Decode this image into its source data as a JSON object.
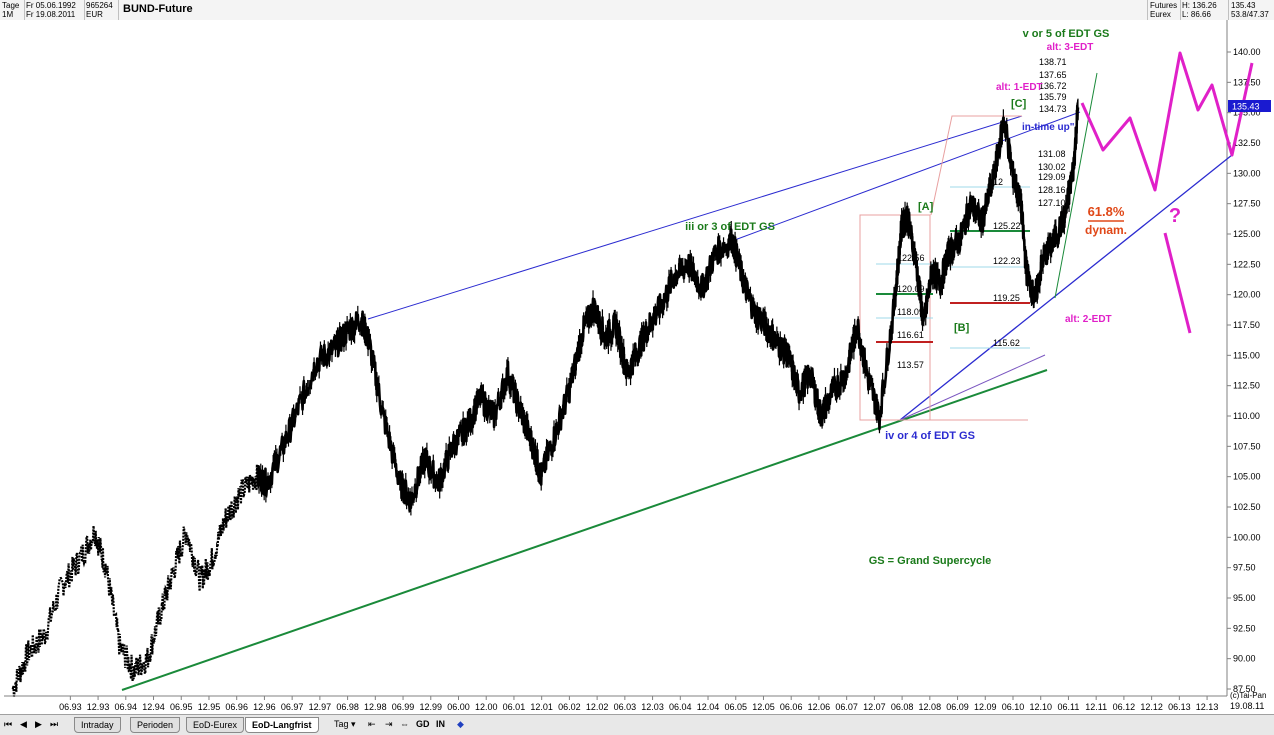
{
  "header": {
    "cells": [
      {
        "l1": "Tage",
        "l2": "1M"
      },
      {
        "l1": "Fr 05.06.1992",
        "l2": "Fr 19.08.2011"
      },
      {
        "l1": "965264",
        "l2": "EUR"
      }
    ],
    "title": "BUND-Future",
    "right": [
      {
        "l1": "Futures",
        "l2": "Eurex"
      },
      {
        "l1": "H: 136.26",
        "l2": "L: 86.66"
      },
      {
        "l1": "135.43",
        "l2": "53.8/47.37"
      }
    ]
  },
  "tabs": {
    "nav_icons": [
      "first-icon",
      "prev-icon",
      "next-icon",
      "last-icon"
    ],
    "items": [
      {
        "label": "Intraday",
        "active": false
      },
      {
        "label": "Perioden",
        "active": false
      },
      {
        "label": "EoD-Eurex",
        "active": false
      },
      {
        "label": "EoD-Langfrist",
        "active": true
      }
    ],
    "period_select": "Tag",
    "gd_label": "GD",
    "in_label": "IN"
  },
  "copyright": "(c)Tai-Pan",
  "last_date": "19.08.11",
  "colors": {
    "price": "#000000",
    "green_line": "#1a8a3a",
    "blue_line": "#2b2bd0",
    "magenta": "#e020c8",
    "orange": "#e04818",
    "annotation_green": "#1a7a1a",
    "last_price_bg": "#1a1ad0"
  },
  "chart_data": {
    "type": "line",
    "title": "BUND-Future",
    "y_axis": {
      "range": [
        86.66,
        141.5
      ],
      "ticks": [
        "87.50",
        "90.00",
        "92.50",
        "95.00",
        "97.50",
        "100.00",
        "102.50",
        "105.00",
        "107.50",
        "110.00",
        "112.50",
        "115.00",
        "117.50",
        "120.00",
        "122.50",
        "125.00",
        "127.50",
        "130.00",
        "132.50",
        "135.00",
        "137.50",
        "140.00"
      ],
      "side": "right"
    },
    "x_axis": {
      "range": [
        "1992-06",
        "2014-01"
      ],
      "ticks": [
        "06.93",
        "12.93",
        "06.94",
        "12.94",
        "06.95",
        "12.95",
        "06.96",
        "12.96",
        "06.97",
        "12.97",
        "06.98",
        "12.98",
        "06.99",
        "12.99",
        "06.00",
        "12.00",
        "06.01",
        "12.01",
        "06.02",
        "12.02",
        "06.03",
        "12.03",
        "06.04",
        "12.04",
        "06.05",
        "12.05",
        "06.06",
        "12.06",
        "06.07",
        "12.07",
        "06.08",
        "12.08",
        "06.09",
        "12.09",
        "06.10",
        "12.10",
        "06.11",
        "12.11",
        "06.12",
        "12.12",
        "06.13",
        "12.13"
      ]
    },
    "last_price": "135.43",
    "series": [
      {
        "x": [
          1992.42,
          1992.7,
          1993.0,
          1993.3,
          1993.6,
          1993.9,
          1994.1,
          1994.35,
          1994.6,
          1994.85,
          1995.1,
          1995.3,
          1995.55,
          1995.8,
          1996.0,
          1996.25,
          1996.5,
          1996.8,
          1997.0,
          1997.3,
          1997.6,
          1997.9,
          1998.2,
          1998.45,
          1998.7,
          1998.85,
          1999.1,
          1999.4,
          1999.6,
          1999.85,
          2000.1,
          2000.35,
          2000.6,
          2000.85,
          2001.1,
          2001.35,
          2001.6,
          2001.8,
          2001.95,
          2002.2,
          2002.45,
          2002.7,
          2002.9,
          2003.1,
          2003.3,
          2003.5,
          2003.7,
          2003.9,
          2004.1,
          2004.35,
          2004.6,
          2004.85,
          2005.1,
          2005.4,
          2005.6,
          2005.8,
          2006.0,
          2006.2,
          2006.4,
          2006.6,
          2006.8,
          2007.0,
          2007.2,
          2007.45,
          2007.65,
          2007.85,
          2008.05,
          2008.3,
          2008.45,
          2008.55,
          2008.7,
          2008.85,
          2009.0,
          2009.15,
          2009.3,
          2009.5,
          2009.7,
          2009.9,
          2010.1,
          2010.3,
          2010.45,
          2010.6,
          2010.7,
          2010.85,
          2011.0,
          2011.2,
          2011.4,
          2011.55,
          2011.63
        ],
        "y": [
          87.5,
          90.5,
          92.0,
          96.0,
          98.0,
          100.5,
          97.5,
          91.0,
          89.0,
          90.0,
          94.0,
          97.0,
          100.5,
          96.5,
          98.0,
          101.5,
          103.5,
          105.0,
          104.5,
          107.5,
          111.0,
          114.5,
          115.5,
          117.0,
          118.0,
          116.0,
          110.0,
          104.5,
          103.0,
          106.5,
          104.5,
          107.5,
          109.0,
          111.5,
          110.0,
          113.5,
          110.0,
          107.5,
          105.0,
          108.5,
          112.0,
          117.0,
          119.0,
          116.5,
          117.5,
          113.5,
          115.5,
          117.5,
          119.0,
          121.5,
          122.5,
          120.5,
          123.5,
          124.5,
          121.0,
          118.5,
          117.5,
          116.0,
          115.0,
          112.0,
          113.5,
          110.0,
          112.0,
          113.5,
          117.5,
          113.0,
          110.0,
          118.5,
          125.5,
          126.5,
          123.0,
          117.5,
          122.0,
          121.0,
          123.5,
          124.5,
          127.5,
          126.0,
          129.5,
          134.5,
          130.0,
          127.5,
          122.0,
          119.5,
          123.0,
          124.5,
          126.5,
          130.5,
          135.43
        ]
      }
    ]
  },
  "level_labels": [
    "131.08",
    "130.02",
    "129.09",
    "128.16",
    "127.10",
    "125.22",
    "122.23",
    "119.25",
    "115.62",
    "122.56",
    "120.09",
    "118.09",
    "116.61",
    "113.57",
    "138.71",
    "137.65",
    "136.72",
    "135.79",
    "134.73",
    "12"
  ],
  "annotations": {
    "v_or_5": "v or 5 of EDT GS",
    "alt3": "alt: 3-EDT",
    "alt1": "alt: 1-EDT",
    "C": "[C]",
    "in_time": "in-time up\"",
    "A": "[A]",
    "B": "[B]",
    "iii_or_3": "iii or 3 of EDT GS",
    "iv_or_4": "iv or 4 of EDT GS",
    "alt2": "alt: 2-EDT",
    "fib_pct": "61.8%",
    "fib_word": "dynam.",
    "question": "?",
    "gs_note": "GS = Grand Supercycle"
  }
}
